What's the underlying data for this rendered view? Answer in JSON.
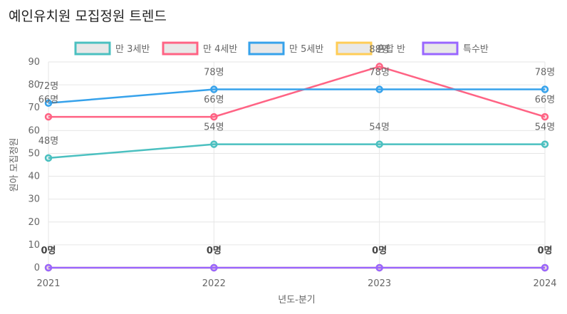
{
  "title": "예인유치원 모집정원 트렌드",
  "colors": {
    "teal": "#4bc0c0",
    "pink": "#ff6384",
    "blue": "#36a2eb",
    "yellow": "#ffcd56",
    "purple": "#9966ff"
  },
  "chart_data": {
    "type": "line",
    "title": "예인유치원 모집정원 트렌드",
    "xlabel": "년도-분기",
    "ylabel": "원아 모집정원",
    "x": [
      "2021",
      "2022",
      "2023",
      "2024"
    ],
    "ylim": [
      0,
      90
    ],
    "yticks": [
      0,
      10,
      20,
      30,
      40,
      50,
      60,
      70,
      80,
      90
    ],
    "grid": true,
    "legend_position": "top",
    "label_suffix": "명",
    "series": [
      {
        "name": "만 3세반",
        "values": [
          48,
          54,
          54,
          54
        ],
        "color": "#4bc0c0",
        "fill": "rgba(75,192,192,0.2)"
      },
      {
        "name": "만 4세반",
        "values": [
          66,
          66,
          88,
          66
        ],
        "color": "#ff6384",
        "fill": "rgba(255,99,132,0.2)"
      },
      {
        "name": "만 5세반",
        "values": [
          72,
          78,
          78,
          78
        ],
        "color": "#36a2eb",
        "fill": "rgba(54,162,235,0.2)"
      },
      {
        "name": "혼합 반",
        "values": [
          0,
          0,
          0,
          0
        ],
        "color": "#ffcd56",
        "fill": "rgba(255,205,86,0.2)"
      },
      {
        "name": "특수반",
        "values": [
          0,
          0,
          0,
          0
        ],
        "color": "#9966ff",
        "fill": "rgba(153,102,255,0.2)"
      }
    ]
  }
}
